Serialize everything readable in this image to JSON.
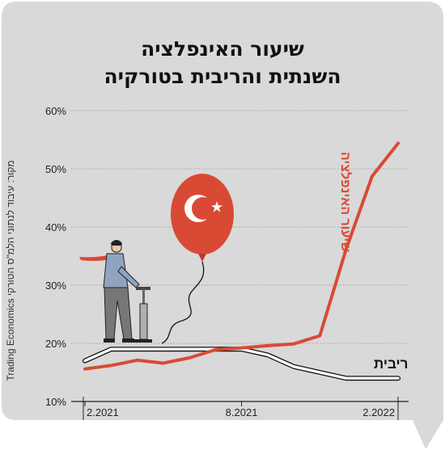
{
  "title_lines": [
    "שיעור האינפלציה",
    "השנתית והריבית בטורקיה"
  ],
  "source": "מקור: עיבוד לנתוני הלמ\"ס הטורקי Trading Economics",
  "colors": {
    "background": "#d9d9d9",
    "inflation": "#d94a35",
    "interest": "#ffffff",
    "interest_outline": "#111111",
    "flag": "#d94a35"
  },
  "chart_data": {
    "type": "line",
    "ylim": [
      10,
      60
    ],
    "yticks": [
      "60%",
      "50%",
      "40%",
      "30%",
      "20%",
      "10%"
    ],
    "ytick_values": [
      60,
      50,
      40,
      30,
      20,
      10
    ],
    "xticks": [
      "2.2021",
      "8.2021",
      "2.2022"
    ],
    "xtick_values": [
      0,
      6,
      12
    ],
    "xlim": [
      0,
      12.4
    ],
    "grid": true,
    "series": [
      {
        "name": "שיעור האינפלציה",
        "x": [
          0,
          1,
          2,
          3,
          4,
          5,
          6,
          7,
          8,
          9,
          10,
          11,
          12
        ],
        "values": [
          15.6,
          16.2,
          17.1,
          16.6,
          17.5,
          18.9,
          19.2,
          19.6,
          19.9,
          21.3,
          36.1,
          48.7,
          54.4
        ]
      },
      {
        "name": "ריבית",
        "x": [
          0,
          1,
          2,
          3,
          4,
          5,
          6,
          7,
          8,
          9,
          10,
          11,
          12
        ],
        "values": [
          17.0,
          19.0,
          19.0,
          19.0,
          19.0,
          19.0,
          19.0,
          18.0,
          16.0,
          15.0,
          14.0,
          14.0,
          14.0
        ]
      }
    ]
  }
}
